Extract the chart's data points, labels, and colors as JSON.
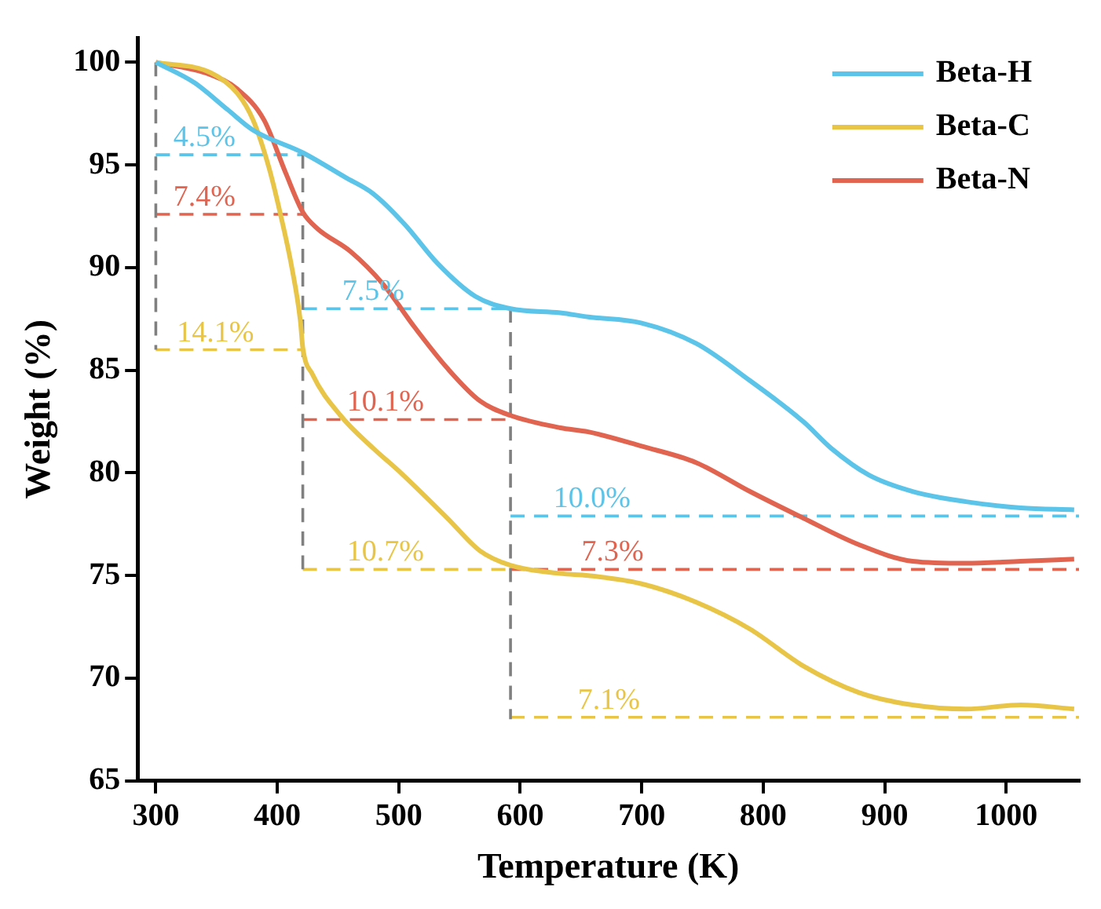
{
  "chart_data": {
    "type": "line",
    "xlabel": "Temperature (K)",
    "ylabel": "Weight (%)",
    "xlim": [
      285,
      1060
    ],
    "ylim": [
      65,
      101.2
    ],
    "xticks": [
      300,
      400,
      500,
      600,
      700,
      800,
      900,
      1000
    ],
    "yticks": [
      65,
      70,
      75,
      80,
      85,
      90,
      95,
      100
    ],
    "grid": false,
    "legend": "top right",
    "marker": "none",
    "series": [
      {
        "name": "Beta-H",
        "color": "#5bc4e8",
        "line_style": "solid",
        "x": [
          300,
          332,
          359,
          380,
          421,
          456,
          479,
          505,
          532,
          563,
          592,
          633,
          656,
          700,
          745,
          789,
          833,
          856,
          887,
          923,
          967,
          1012,
          1056
        ],
        "values": [
          100,
          99.0,
          97.7,
          96.7,
          95.6,
          94.4,
          93.6,
          92.1,
          90.2,
          88.6,
          88.0,
          87.8,
          87.6,
          87.3,
          86.3,
          84.5,
          82.5,
          81.2,
          79.9,
          79.1,
          78.6,
          78.3,
          78.2
        ]
      },
      {
        "name": "Beta-C",
        "color": "#e8c547",
        "line_style": "solid",
        "x": [
          300,
          345,
          367,
          380,
          393,
          403,
          412,
          419,
          421,
          429,
          452,
          479,
          500,
          540,
          567,
          592,
          633,
          656,
          700,
          745,
          789,
          833,
          879,
          923,
          967,
          1012,
          1056
        ],
        "values": [
          100,
          99.5,
          98.5,
          97.2,
          94.9,
          92.5,
          90.0,
          87.4,
          86.1,
          84.8,
          82.8,
          81.2,
          80.1,
          77.8,
          76.2,
          75.5,
          75.1,
          75.0,
          74.6,
          73.7,
          72.4,
          70.6,
          69.3,
          68.7,
          68.5,
          68.7,
          68.5
        ]
      },
      {
        "name": "Beta-N",
        "color": "#e06450",
        "line_style": "solid",
        "x": [
          300,
          345,
          367,
          389,
          407,
          421,
          433,
          460,
          487,
          513,
          540,
          567,
          592,
          633,
          656,
          700,
          745,
          789,
          833,
          879,
          923,
          967,
          1012,
          1056
        ],
        "values": [
          100,
          99.4,
          98.7,
          97.2,
          94.6,
          92.7,
          91.9,
          90.8,
          89.2,
          87.1,
          85.1,
          83.5,
          82.8,
          82.2,
          82.0,
          81.3,
          80.5,
          79.1,
          77.8,
          76.5,
          75.7,
          75.6,
          75.7,
          75.8
        ]
      },
      {
        "type": "line",
        "color": "#808080",
        "line_style": "dashed",
        "x": [
          300,
          300
        ],
        "values": [
          100,
          86.0
        ]
      },
      {
        "type": "line",
        "color": "#808080",
        "line_style": "dashed",
        "x": [
          421,
          421
        ],
        "values": [
          95.5,
          75.3
        ]
      },
      {
        "type": "line",
        "color": "#808080",
        "line_style": "dashed",
        "x": [
          592,
          592
        ],
        "values": [
          88.0,
          68.0
        ]
      },
      {
        "type": "line",
        "color": "#5bc4e8",
        "line_style": "dashed",
        "x": [
          300,
          421
        ],
        "values": [
          95.5,
          95.5
        ]
      },
      {
        "type": "line",
        "color": "#e06450",
        "line_style": "dashed",
        "x": [
          300,
          421
        ],
        "values": [
          92.6,
          92.6
        ]
      },
      {
        "type": "line",
        "color": "#e8c547",
        "line_style": "dashed",
        "x": [
          300,
          421
        ],
        "values": [
          86.0,
          86.0
        ]
      },
      {
        "type": "line",
        "color": "#5bc4e8",
        "line_style": "dashed",
        "x": [
          421,
          592
        ],
        "values": [
          88.0,
          88.0
        ]
      },
      {
        "type": "line",
        "color": "#e06450",
        "line_style": "dashed",
        "x": [
          421,
          592
        ],
        "values": [
          82.6,
          82.6
        ]
      },
      {
        "type": "line",
        "color": "#e8c547",
        "line_style": "dashed",
        "x": [
          421,
          592
        ],
        "values": [
          75.3,
          75.3
        ]
      },
      {
        "type": "line",
        "color": "#5bc4e8",
        "line_style": "dashed",
        "x": [
          592,
          1060
        ],
        "values": [
          77.9,
          77.9
        ]
      },
      {
        "type": "line",
        "color": "#e06450",
        "line_style": "dashed",
        "x": [
          592,
          1060
        ],
        "values": [
          75.3,
          75.3
        ]
      },
      {
        "type": "line",
        "color": "#e8c547",
        "line_style": "dashed",
        "x": [
          592,
          1060
        ],
        "values": [
          68.1,
          68.1
        ]
      }
    ],
    "annotations": [
      {
        "text": "4.5%",
        "x": 340,
        "y": 95.5
      },
      {
        "text": "7.4%",
        "x": 340,
        "y": 92.6
      },
      {
        "text": "14.1%",
        "x": 349,
        "y": 86.0
      },
      {
        "text": "7.5%",
        "x": 479,
        "y": 88.0
      },
      {
        "text": "10.1%",
        "x": 489,
        "y": 82.6
      },
      {
        "text": "10.7%",
        "x": 489,
        "y": 75.3
      },
      {
        "text": "10.0%",
        "x": 659,
        "y": 77.9
      },
      {
        "text": "7.3%",
        "x": 676,
        "y": 75.3
      },
      {
        "text": "7.1%",
        "x": 673,
        "y": 68.1
      }
    ]
  }
}
